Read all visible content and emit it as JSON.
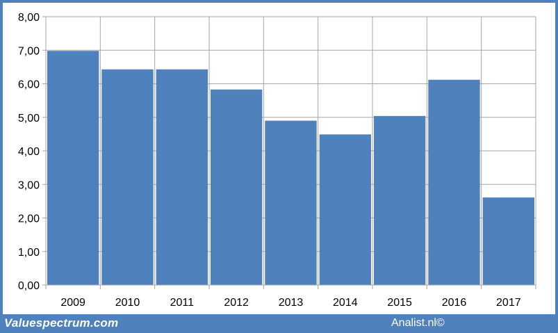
{
  "chart_data": {
    "type": "bar",
    "categories": [
      "2009",
      "2010",
      "2011",
      "2012",
      "2013",
      "2014",
      "2015",
      "2016",
      "2017"
    ],
    "values": [
      6.98,
      6.43,
      6.43,
      5.83,
      4.9,
      4.49,
      5.04,
      6.12,
      2.61
    ],
    "y_ticks": [
      "0,00",
      "1,00",
      "2,00",
      "3,00",
      "4,00",
      "5,00",
      "6,00",
      "7,00",
      "8,00"
    ],
    "ylim": [
      0,
      8
    ],
    "grid": true,
    "legend": "none",
    "bar_color": "#4f81bd",
    "grid_color": "#a6a6a6"
  },
  "footer": {
    "brand_left": "Valuespectrum.com",
    "brand_right": "Analist.nl©",
    "bar_color": "#4f81bd"
  }
}
